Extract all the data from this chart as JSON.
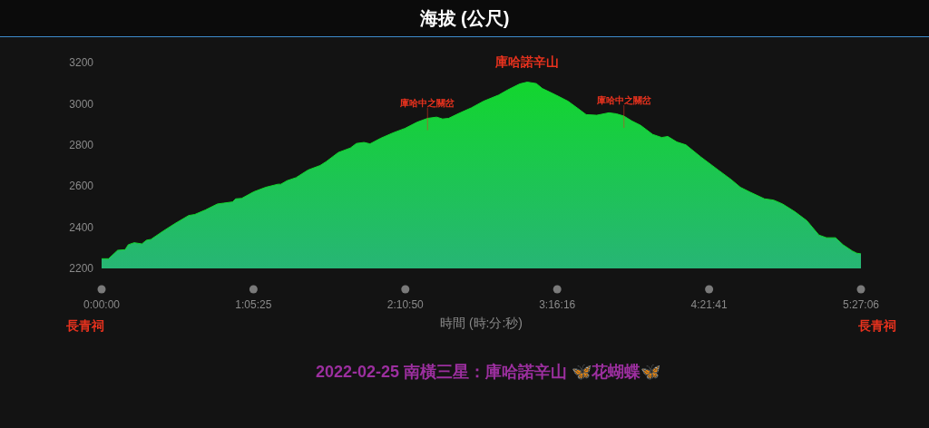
{
  "chart_data": {
    "type": "area",
    "title": "海拔 (公尺)",
    "subtitle": "2022-02-25 南橫三星：庫哈諾辛山 🦋花蝴蝶🦋",
    "xlabel": "時間 (時:分:秒)",
    "color": "#12d62e",
    "x": [
      0,
      0.05,
      0.115,
      0.169,
      0.191,
      0.234,
      0.289,
      0.322,
      0.354,
      0.441,
      0.527,
      0.625,
      0.669,
      0.745,
      0.831,
      0.875,
      0.94,
      0.962,
      1.005,
      1.092,
      1.178,
      1.266,
      1.287,
      1.331,
      1.396,
      1.482,
      1.569,
      1.613,
      1.699,
      1.786,
      1.829,
      1.884,
      1.927,
      2.003,
      2.09,
      2.177,
      2.264,
      2.34,
      2.405,
      2.448,
      2.491,
      2.568,
      2.654,
      2.741,
      2.85,
      2.915,
      3.001,
      3.056,
      3.121,
      3.164,
      3.262,
      3.349,
      3.414,
      3.479,
      3.555,
      3.642,
      3.696,
      3.75,
      3.805,
      3.87,
      3.956,
      4.021,
      4.065,
      4.13,
      4.195,
      4.303,
      4.433,
      4.521,
      4.586,
      4.651,
      4.759,
      4.824,
      4.889,
      4.976,
      5.063,
      5.15,
      5.204,
      5.269,
      5.323,
      5.389,
      5.421,
      5.4517
    ],
    "values": [
      2247,
      2247,
      2288,
      2291,
      2315,
      2325,
      2319,
      2337,
      2341,
      2381,
      2418,
      2457,
      2462,
      2484,
      2513,
      2517,
      2523,
      2538,
      2540,
      2572,
      2594,
      2609,
      2609,
      2626,
      2641,
      2678,
      2700,
      2719,
      2763,
      2785,
      2807,
      2812,
      2805,
      2832,
      2858,
      2880,
      2910,
      2929,
      2935,
      2926,
      2929,
      2954,
      2980,
      3012,
      3042,
      3067,
      3096,
      3105,
      3098,
      3074,
      3042,
      3012,
      2980,
      2947,
      2944,
      2956,
      2951,
      2940,
      2917,
      2895,
      2851,
      2836,
      2841,
      2814,
      2800,
      2741,
      2675,
      2631,
      2594,
      2572,
      2538,
      2532,
      2513,
      2476,
      2432,
      2362,
      2349,
      2349,
      2315,
      2285,
      2274,
      2271
    ],
    "xlim": [
      0,
      5.4517
    ],
    "xticks": [
      {
        "value": 0,
        "label": "0:00:00"
      },
      {
        "value": 1.0903,
        "label": "1:05:25"
      },
      {
        "value": 2.1806,
        "label": "2:10:50"
      },
      {
        "value": 3.2711,
        "label": "3:16:16"
      },
      {
        "value": 4.3614,
        "label": "4:21:41"
      },
      {
        "value": 5.4517,
        "label": "5:27:06"
      }
    ],
    "ylim": [
      2200,
      3200
    ],
    "yticks": [
      2200,
      2400,
      2600,
      2800,
      3000,
      3200
    ],
    "annotations": [
      {
        "text": "庫哈諾辛山",
        "x": 3.056,
        "y": 3105
      },
      {
        "text": "庫哈中之關岔",
        "x": 2.34,
        "y": 2929
      },
      {
        "text": "庫哈中之關岔",
        "x": 3.75,
        "y": 2940
      },
      "長青祠",
      "長青祠"
    ]
  }
}
